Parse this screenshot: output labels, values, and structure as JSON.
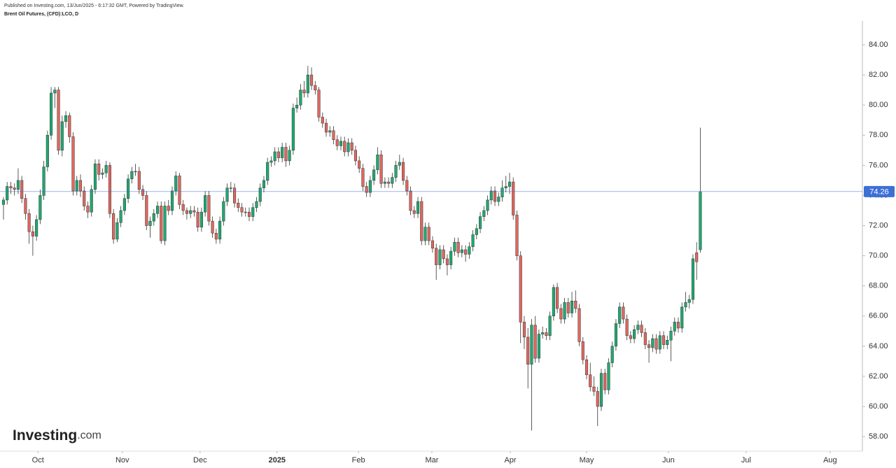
{
  "header": {
    "published": "Published on Investing.com, 13/Jun/2025 - 6:17:32 GMT, Powered by TradingView.",
    "instrument": "Brent Oil Futures, (CFD):LCO, D"
  },
  "brand": "Investing",
  "brand_suffix": ".com",
  "chart_data": {
    "type": "candlestick",
    "up_color": "#1fa971",
    "down_color": "#e0675f",
    "last_price": 74.26,
    "last_price_color": "#3d6fd6",
    "ylim": [
      57.03,
      85.58
    ],
    "yticks": [
      {
        "value": 58,
        "label": "58.00"
      },
      {
        "value": 60,
        "label": "60.00"
      },
      {
        "value": 62,
        "label": "62.00"
      },
      {
        "value": 64,
        "label": "64.00"
      },
      {
        "value": 66,
        "label": "66.00"
      },
      {
        "value": 68,
        "label": "68.00"
      },
      {
        "value": 70,
        "label": "70.00"
      },
      {
        "value": 72,
        "label": "72.00"
      },
      {
        "value": 74,
        "label": "74.00"
      },
      {
        "value": 76,
        "label": "76.00"
      },
      {
        "value": 78,
        "label": "78.00"
      },
      {
        "value": 80,
        "label": "80.00"
      },
      {
        "value": 82,
        "label": "82.00"
      },
      {
        "value": 84,
        "label": "84.00"
      }
    ],
    "xlim": [
      -0.95,
      234.2
    ],
    "xticks": [
      {
        "value": 9.4,
        "label": "Oct"
      },
      {
        "value": 32.4,
        "label": "Nov"
      },
      {
        "value": 53.6,
        "label": "Dec"
      },
      {
        "value": 74.6,
        "label": "2025"
      },
      {
        "value": 96.8,
        "label": "Feb"
      },
      {
        "value": 116.8,
        "label": "Mar"
      },
      {
        "value": 138.2,
        "label": "Apr"
      },
      {
        "value": 159,
        "label": "May"
      },
      {
        "value": 181.3,
        "label": "Jun"
      },
      {
        "value": 202.5,
        "label": "Jul"
      },
      {
        "value": 225.4,
        "label": "Aug"
      }
    ],
    "ohlc": [
      [
        73.4,
        73.9,
        72.4,
        73.7
      ],
      [
        73.7,
        74.9,
        73.4,
        74.6
      ],
      [
        74.6,
        74.9,
        74.1,
        74.5
      ],
      [
        74.5,
        74.8,
        74.0,
        74.4
      ],
      [
        74.4,
        75.8,
        74.1,
        75.0
      ],
      [
        75.0,
        75.3,
        73.5,
        73.8
      ],
      [
        73.8,
        74.1,
        72.4,
        72.8
      ],
      [
        72.8,
        73.1,
        70.8,
        71.6
      ],
      [
        71.6,
        72.0,
        70.0,
        71.3
      ],
      [
        71.3,
        72.7,
        71.0,
        72.4
      ],
      [
        72.4,
        74.4,
        72.1,
        74.0
      ],
      [
        74.0,
        76.3,
        73.7,
        75.9
      ],
      [
        75.9,
        78.3,
        75.6,
        78.0
      ],
      [
        78.0,
        81.2,
        77.7,
        80.8
      ],
      [
        80.8,
        81.2,
        79.8,
        81.0
      ],
      [
        81.0,
        81.2,
        76.7,
        77.0
      ],
      [
        77.0,
        79.3,
        76.6,
        78.9
      ],
      [
        78.9,
        79.6,
        78.5,
        79.3
      ],
      [
        79.3,
        79.5,
        77.5,
        77.9
      ],
      [
        77.9,
        78.2,
        74.0,
        74.3
      ],
      [
        74.3,
        75.3,
        74.0,
        75.0
      ],
      [
        75.0,
        75.4,
        73.9,
        74.3
      ],
      [
        74.3,
        74.6,
        73.0,
        73.3
      ],
      [
        73.3,
        73.6,
        72.5,
        72.9
      ],
      [
        72.9,
        74.7,
        72.6,
        74.4
      ],
      [
        74.4,
        76.4,
        74.1,
        76.1
      ],
      [
        76.1,
        76.4,
        75.0,
        75.4
      ],
      [
        75.4,
        75.8,
        75.1,
        75.5
      ],
      [
        75.5,
        76.3,
        75.2,
        76.0
      ],
      [
        76.0,
        76.2,
        72.5,
        72.8
      ],
      [
        72.8,
        73.1,
        70.8,
        71.1
      ],
      [
        71.1,
        72.5,
        70.9,
        72.2
      ],
      [
        72.2,
        73.3,
        71.9,
        73.0
      ],
      [
        73.0,
        74.1,
        72.7,
        73.8
      ],
      [
        73.8,
        75.4,
        73.5,
        75.1
      ],
      [
        75.1,
        75.9,
        74.8,
        75.6
      ],
      [
        75.6,
        76.1,
        75.3,
        75.6
      ],
      [
        75.6,
        75.9,
        74.1,
        74.4
      ],
      [
        74.4,
        74.7,
        73.7,
        74.0
      ],
      [
        74.0,
        74.3,
        71.7,
        72.0
      ],
      [
        72.0,
        72.6,
        71.2,
        72.3
      ],
      [
        72.3,
        73.1,
        72.0,
        72.8
      ],
      [
        72.8,
        73.6,
        72.5,
        73.3
      ],
      [
        73.3,
        73.6,
        70.8,
        71.0
      ],
      [
        71.0,
        73.6,
        70.7,
        73.3
      ],
      [
        73.3,
        73.7,
        72.7,
        73.0
      ],
      [
        73.0,
        74.6,
        72.7,
        74.3
      ],
      [
        74.3,
        75.6,
        74.0,
        75.3
      ],
      [
        75.3,
        75.5,
        73.1,
        73.4
      ],
      [
        73.4,
        73.7,
        72.7,
        73.0
      ],
      [
        73.0,
        73.2,
        72.4,
        72.8
      ],
      [
        72.8,
        73.3,
        72.5,
        73.0
      ],
      [
        73.0,
        73.3,
        72.6,
        72.9
      ],
      [
        72.9,
        73.2,
        71.6,
        71.9
      ],
      [
        71.9,
        73.2,
        71.6,
        72.9
      ],
      [
        72.9,
        74.3,
        72.6,
        74.0
      ],
      [
        74.0,
        74.3,
        72.0,
        72.3
      ],
      [
        72.3,
        72.6,
        71.2,
        71.5
      ],
      [
        71.5,
        71.8,
        70.8,
        71.1
      ],
      [
        71.1,
        72.6,
        70.8,
        72.3
      ],
      [
        72.3,
        73.9,
        72.0,
        73.6
      ],
      [
        73.6,
        74.8,
        73.3,
        74.5
      ],
      [
        74.5,
        74.9,
        74.2,
        74.5
      ],
      [
        74.5,
        74.8,
        73.2,
        73.5
      ],
      [
        73.5,
        73.8,
        72.9,
        73.2
      ],
      [
        73.2,
        73.5,
        72.6,
        72.9
      ],
      [
        72.9,
        73.2,
        72.6,
        72.9
      ],
      [
        72.9,
        73.2,
        72.3,
        72.6
      ],
      [
        72.6,
        73.5,
        72.3,
        73.2
      ],
      [
        73.2,
        73.9,
        72.9,
        73.6
      ],
      [
        73.6,
        74.8,
        73.3,
        74.5
      ],
      [
        74.5,
        75.3,
        74.2,
        75.0
      ],
      [
        75.0,
        76.5,
        74.7,
        76.2
      ],
      [
        76.2,
        76.6,
        75.9,
        76.3
      ],
      [
        76.3,
        77.2,
        76.0,
        76.9
      ],
      [
        76.9,
        77.2,
        76.2,
        76.5
      ],
      [
        76.5,
        77.5,
        76.2,
        77.2
      ],
      [
        77.2,
        77.5,
        75.9,
        76.3
      ],
      [
        76.3,
        77.3,
        76.0,
        77.0
      ],
      [
        77.0,
        80.1,
        76.7,
        79.8
      ],
      [
        79.8,
        80.5,
        79.5,
        80.0
      ],
      [
        80.0,
        81.4,
        79.7,
        81.0
      ],
      [
        81.0,
        81.6,
        80.5,
        80.8
      ],
      [
        80.8,
        82.6,
        80.5,
        82.0
      ],
      [
        82.0,
        82.5,
        81.0,
        81.3
      ],
      [
        81.3,
        81.6,
        80.7,
        81.0
      ],
      [
        81.0,
        81.2,
        78.9,
        79.2
      ],
      [
        79.2,
        79.5,
        78.5,
        78.8
      ],
      [
        78.8,
        79.1,
        77.9,
        78.2
      ],
      [
        78.2,
        78.6,
        77.9,
        78.3
      ],
      [
        78.3,
        78.6,
        77.4,
        77.7
      ],
      [
        77.7,
        78.0,
        77.0,
        77.3
      ],
      [
        77.3,
        77.9,
        77.0,
        77.6
      ],
      [
        77.6,
        77.9,
        76.6,
        76.9
      ],
      [
        76.9,
        77.8,
        76.6,
        77.5
      ],
      [
        77.5,
        77.8,
        76.7,
        77.0
      ],
      [
        77.0,
        77.3,
        76.0,
        76.3
      ],
      [
        76.3,
        76.6,
        75.5,
        75.8
      ],
      [
        75.8,
        76.1,
        74.3,
        74.6
      ],
      [
        74.6,
        74.9,
        73.9,
        74.2
      ],
      [
        74.2,
        75.3,
        73.9,
        75.0
      ],
      [
        75.0,
        76.0,
        74.7,
        75.7
      ],
      [
        75.7,
        77.2,
        75.4,
        76.7
      ],
      [
        76.7,
        77.0,
        74.5,
        74.8
      ],
      [
        74.8,
        75.2,
        74.5,
        74.9
      ],
      [
        74.9,
        75.2,
        74.5,
        74.8
      ],
      [
        74.8,
        75.5,
        74.5,
        75.2
      ],
      [
        75.2,
        76.3,
        74.9,
        76.0
      ],
      [
        76.0,
        76.7,
        75.7,
        76.2
      ],
      [
        76.2,
        76.5,
        74.7,
        75.0
      ],
      [
        75.0,
        75.3,
        74.0,
        74.3
      ],
      [
        74.3,
        74.6,
        72.7,
        73.0
      ],
      [
        73.0,
        73.3,
        72.5,
        72.8
      ],
      [
        72.8,
        73.9,
        72.5,
        73.6
      ],
      [
        73.6,
        73.9,
        70.7,
        71.0
      ],
      [
        71.0,
        72.2,
        70.7,
        71.9
      ],
      [
        71.9,
        72.2,
        70.7,
        71.0
      ],
      [
        71.0,
        71.3,
        70.2,
        70.5
      ],
      [
        70.5,
        70.8,
        68.4,
        69.4
      ],
      [
        69.4,
        70.7,
        69.1,
        70.4
      ],
      [
        70.4,
        70.7,
        69.5,
        69.8
      ],
      [
        69.8,
        70.1,
        68.7,
        69.4
      ],
      [
        69.4,
        70.6,
        69.1,
        70.3
      ],
      [
        70.3,
        71.2,
        70.0,
        70.9
      ],
      [
        70.9,
        71.2,
        69.9,
        70.2
      ],
      [
        70.2,
        70.7,
        69.9,
        70.4
      ],
      [
        70.4,
        70.7,
        69.6,
        70.1
      ],
      [
        70.1,
        70.9,
        69.8,
        70.6
      ],
      [
        70.6,
        71.7,
        70.3,
        71.4
      ],
      [
        71.4,
        72.1,
        71.1,
        71.8
      ],
      [
        71.8,
        72.9,
        71.5,
        72.6
      ],
      [
        72.6,
        73.3,
        72.3,
        73.0
      ],
      [
        73.0,
        74.0,
        72.7,
        73.7
      ],
      [
        73.7,
        74.6,
        73.4,
        74.3
      ],
      [
        74.3,
        74.6,
        73.3,
        73.6
      ],
      [
        73.6,
        74.2,
        73.3,
        73.9
      ],
      [
        73.9,
        75.0,
        73.6,
        74.5
      ],
      [
        74.5,
        75.3,
        74.2,
        74.6
      ],
      [
        74.6,
        75.5,
        74.1,
        74.9
      ],
      [
        74.9,
        75.2,
        72.4,
        72.7
      ],
      [
        72.7,
        73.0,
        69.7,
        70.0
      ],
      [
        70.0,
        70.3,
        64.2,
        65.6
      ],
      [
        65.6,
        66.0,
        63.8,
        64.6
      ],
      [
        64.6,
        65.2,
        61.2,
        62.8
      ],
      [
        62.8,
        65.8,
        58.4,
        65.4
      ],
      [
        65.4,
        66.0,
        62.9,
        63.2
      ],
      [
        63.2,
        65.1,
        62.9,
        64.8
      ],
      [
        64.8,
        65.3,
        64.5,
        64.9
      ],
      [
        64.9,
        65.2,
        64.4,
        64.7
      ],
      [
        64.7,
        66.3,
        64.4,
        66.0
      ],
      [
        66.0,
        68.1,
        65.7,
        67.9
      ],
      [
        67.9,
        68.2,
        66.2,
        66.5
      ],
      [
        66.5,
        66.8,
        65.5,
        65.8
      ],
      [
        65.8,
        67.2,
        65.5,
        66.9
      ],
      [
        66.9,
        67.2,
        65.9,
        66.2
      ],
      [
        66.2,
        67.6,
        65.9,
        67.0
      ],
      [
        67.0,
        67.7,
        66.2,
        66.5
      ],
      [
        66.5,
        66.8,
        64.0,
        64.3
      ],
      [
        64.3,
        64.6,
        62.8,
        63.1
      ],
      [
        63.1,
        63.4,
        61.8,
        62.1
      ],
      [
        62.1,
        62.9,
        61.0,
        61.3
      ],
      [
        61.3,
        62.0,
        60.7,
        61.0
      ],
      [
        61.0,
        61.3,
        58.7,
        60.0
      ],
      [
        60.0,
        62.5,
        59.7,
        62.2
      ],
      [
        62.2,
        62.5,
        60.8,
        61.1
      ],
      [
        61.1,
        63.2,
        60.8,
        62.9
      ],
      [
        62.9,
        64.3,
        62.6,
        64.0
      ],
      [
        64.0,
        65.8,
        63.7,
        65.5
      ],
      [
        65.5,
        66.9,
        65.2,
        66.6
      ],
      [
        66.6,
        66.9,
        65.5,
        65.8
      ],
      [
        65.8,
        66.1,
        64.4,
        64.7
      ],
      [
        64.7,
        65.0,
        64.2,
        64.5
      ],
      [
        64.5,
        65.4,
        64.2,
        65.1
      ],
      [
        65.1,
        65.7,
        64.8,
        65.4
      ],
      [
        65.4,
        65.7,
        64.6,
        64.9
      ],
      [
        64.9,
        65.2,
        63.8,
        64.1
      ],
      [
        64.1,
        64.4,
        62.9,
        63.9
      ],
      [
        63.9,
        64.8,
        63.6,
        64.5
      ],
      [
        64.5,
        64.8,
        63.5,
        63.8
      ],
      [
        63.8,
        65.0,
        63.5,
        64.7
      ],
      [
        64.7,
        65.0,
        63.8,
        64.1
      ],
      [
        64.1,
        64.7,
        63.8,
        64.4
      ],
      [
        64.4,
        65.3,
        63.0,
        65.0
      ],
      [
        65.0,
        65.9,
        64.7,
        65.6
      ],
      [
        65.6,
        65.9,
        64.9,
        65.2
      ],
      [
        65.2,
        66.9,
        64.9,
        66.6
      ],
      [
        66.6,
        67.6,
        66.3,
        66.9
      ],
      [
        66.9,
        67.4,
        66.5,
        67.1
      ],
      [
        67.1,
        70.1,
        66.8,
        69.8
      ],
      [
        70.2,
        70.9,
        68.4,
        69.6
      ],
      [
        70.4,
        78.5,
        70.2,
        74.26
      ]
    ]
  }
}
